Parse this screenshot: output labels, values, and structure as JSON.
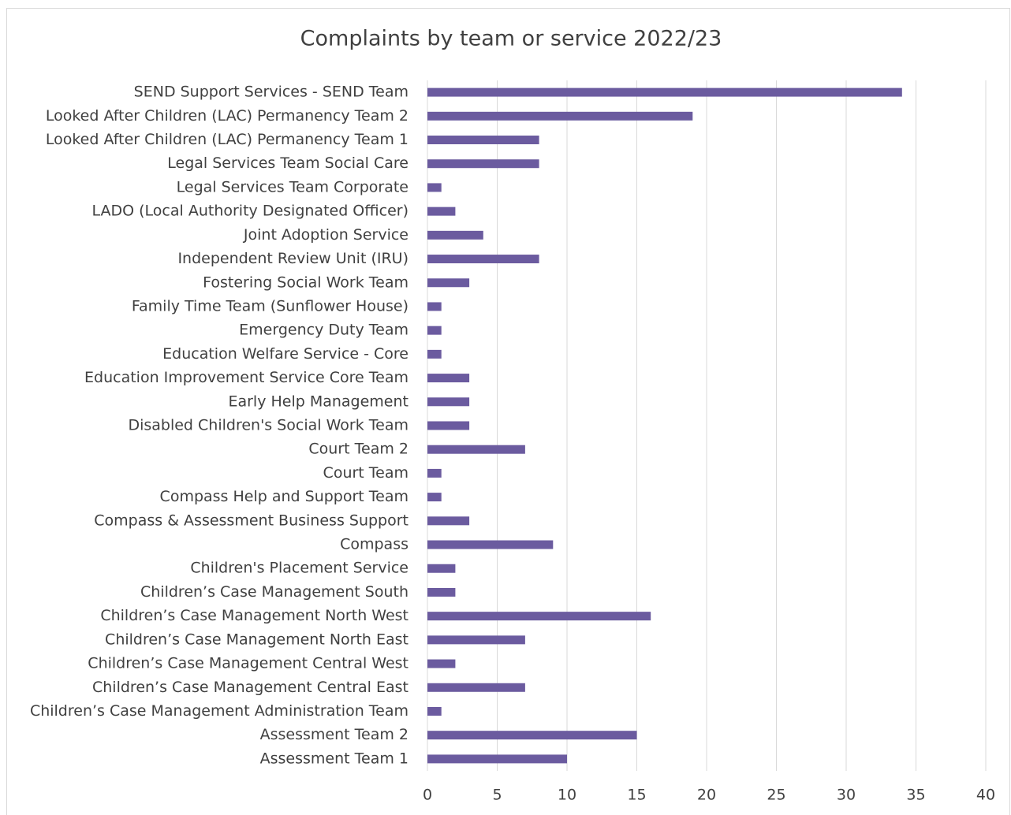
{
  "chart_data": {
    "type": "hbar",
    "title": "Complaints by team or service 2022/23",
    "categories": [
      "SEND Support Services - SEND Team",
      "Looked After Children (LAC) Permanency Team 2",
      "Looked After Children (LAC) Permanency Team 1",
      "Legal Services Team Social Care",
      "Legal Services Team Corporate",
      "LADO (Local Authority Designated Officer)",
      "Joint Adoption Service",
      "Independent Review Unit (IRU)",
      "Fostering Social Work Team",
      "Family Time Team (Sunflower House)",
      "Emergency Duty Team",
      "Education Welfare Service - Core",
      "Education Improvement Service Core Team",
      "Early Help Management",
      "Disabled Children's Social Work Team",
      "Court Team 2",
      "Court Team",
      "Compass Help and Support Team",
      "Compass & Assessment Business Support",
      "Compass",
      "Children's Placement Service",
      "Children’s Case Management South",
      "Children’s Case Management North West",
      "Children’s Case Management North East",
      "Children’s Case Management Central West",
      "Children’s Case Management Central East",
      "Children’s Case Management Administration Team",
      "Assessment Team 2",
      "Assessment Team 1"
    ],
    "values": [
      34,
      19,
      8,
      8,
      1,
      2,
      4,
      8,
      3,
      1,
      1,
      1,
      3,
      3,
      3,
      7,
      1,
      1,
      3,
      9,
      2,
      2,
      16,
      7,
      2,
      7,
      1,
      15,
      10
    ],
    "color": "#6b5b9f",
    "xlim": [
      0,
      40
    ],
    "xticks": [
      0,
      5,
      10,
      15,
      20,
      25,
      30,
      35,
      40
    ],
    "grid": true
  }
}
